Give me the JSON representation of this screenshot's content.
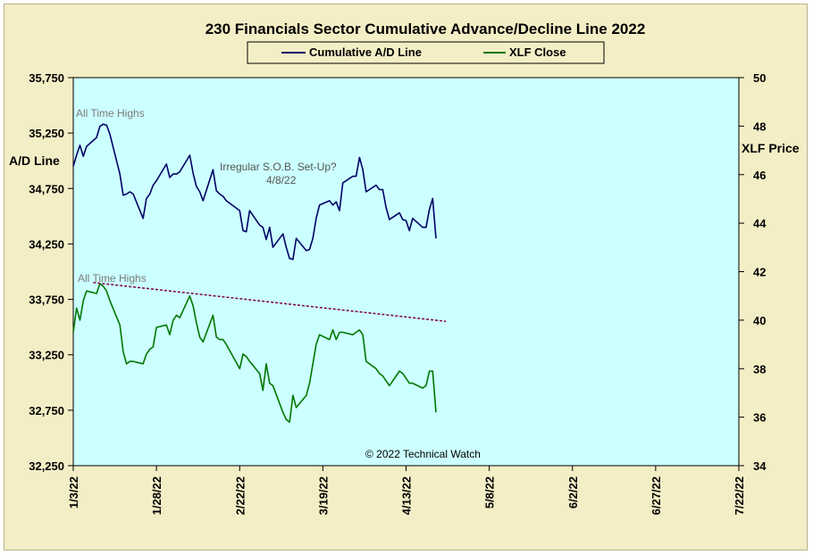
{
  "chart_data": {
    "type": "line",
    "title": "230 Financials  Sector Cumulative  Advance/Decline  Line 2022",
    "ylabel_left": "A/D Line",
    "ylabel_right": "XLF Price",
    "left_ticks": [
      "35,750",
      "35,250",
      "34,750",
      "34,250",
      "33,750",
      "33,250",
      "32,750",
      "32,250"
    ],
    "right_ticks": [
      "50",
      "48",
      "46",
      "44",
      "42",
      "40",
      "38",
      "36",
      "34"
    ],
    "x_ticks": [
      "1/3/22",
      "1/28/22",
      "2/22/22",
      "3/19/22",
      "4/13/22",
      "5/8/22",
      "6/2/22",
      "6/27/22",
      "7/22/22"
    ],
    "ylim_left": [
      32250,
      35750
    ],
    "ylim_right": [
      34,
      50
    ],
    "xlim_days": [
      0,
      200
    ],
    "legend_position": "top",
    "colors": {
      "ad_line": "#000066",
      "xlf": "#007700",
      "trend": "#800040",
      "plot_bg": "#ccffff",
      "frame_bg": "#f4eec6"
    },
    "series": [
      {
        "name": "Cumulative A/D Line",
        "axis": "left",
        "x": [
          0,
          1,
          2,
          3,
          4,
          7,
          8,
          9,
          10,
          11,
          14,
          15,
          16,
          17,
          18,
          21,
          22,
          23,
          24,
          25,
          28,
          29,
          30,
          31,
          32,
          35,
          36,
          37,
          38,
          39,
          42,
          43,
          44,
          45,
          46,
          50,
          51,
          52,
          53,
          56,
          57,
          58,
          59,
          60,
          63,
          64,
          65,
          66,
          67,
          70,
          71,
          72,
          73,
          74,
          77,
          78,
          79,
          80,
          81,
          84,
          85,
          86,
          87,
          88,
          91,
          92,
          93,
          94,
          95,
          98,
          99,
          100,
          101,
          102,
          105,
          106,
          107,
          108,
          109
        ],
        "values": [
          34950,
          35050,
          35140,
          35040,
          35130,
          35210,
          35310,
          35330,
          35320,
          35240,
          34880,
          34690,
          34700,
          34720,
          34700,
          34480,
          34660,
          34700,
          34780,
          34820,
          34970,
          34850,
          34880,
          34880,
          34900,
          35050,
          34890,
          34770,
          34720,
          34640,
          34920,
          34730,
          34700,
          34680,
          34640,
          34550,
          34370,
          34360,
          34550,
          34420,
          34400,
          34290,
          34400,
          34220,
          34340,
          34220,
          34120,
          34110,
          34300,
          34190,
          34200,
          34300,
          34480,
          34600,
          34640,
          34600,
          34630,
          34550,
          34800,
          34860,
          34860,
          35030,
          34920,
          34720,
          34780,
          34740,
          34740,
          34580,
          34470,
          34530,
          34470,
          34460,
          34370,
          34480,
          34400,
          34400,
          34560,
          34660,
          34300
        ]
      },
      {
        "name": "XLF Close",
        "axis": "right",
        "x": [
          0,
          1,
          2,
          3,
          4,
          7,
          8,
          9,
          10,
          11,
          14,
          15,
          16,
          17,
          18,
          21,
          22,
          23,
          24,
          25,
          28,
          29,
          30,
          31,
          32,
          35,
          36,
          37,
          38,
          39,
          42,
          43,
          44,
          45,
          46,
          50,
          51,
          52,
          53,
          56,
          57,
          58,
          59,
          60,
          63,
          64,
          65,
          66,
          67,
          70,
          71,
          72,
          73,
          74,
          77,
          78,
          79,
          80,
          81,
          84,
          85,
          86,
          87,
          88,
          91,
          92,
          93,
          94,
          95,
          98,
          99,
          100,
          101,
          102,
          105,
          106,
          107,
          108,
          109
        ],
        "values": [
          39.5,
          40.5,
          40.0,
          40.8,
          41.2,
          41.1,
          41.5,
          41.4,
          41.2,
          40.8,
          39.8,
          38.7,
          38.2,
          38.3,
          38.3,
          38.2,
          38.6,
          38.8,
          38.9,
          39.7,
          39.8,
          39.4,
          40.0,
          40.2,
          40.1,
          41.0,
          40.6,
          39.9,
          39.3,
          39.1,
          40.2,
          39.3,
          39.2,
          39.2,
          39.0,
          38.0,
          38.6,
          38.5,
          38.3,
          37.8,
          37.1,
          38.2,
          37.4,
          37.3,
          36.2,
          35.9,
          35.8,
          36.9,
          36.4,
          36.9,
          37.4,
          38.2,
          39.0,
          39.4,
          39.2,
          39.6,
          39.2,
          39.5,
          39.5,
          39.4,
          39.5,
          39.6,
          39.4,
          38.3,
          38.0,
          37.8,
          37.7,
          37.5,
          37.3,
          37.9,
          37.8,
          37.6,
          37.4,
          37.4,
          37.2,
          37.3,
          37.9,
          37.9,
          36.2
        ]
      }
    ],
    "trendline": {
      "axis": "right",
      "x": [
        6,
        112
      ],
      "values": [
        41.55,
        39.95
      ]
    },
    "annotations": {
      "ad_ath": "All Time Highs",
      "xlf_ath": "All Time Highs",
      "sob_line1": "Irregular  S.O.B. Set-Up?",
      "sob_line2": "4/8/22",
      "copyright": "© 2022 Technical Watch"
    }
  }
}
